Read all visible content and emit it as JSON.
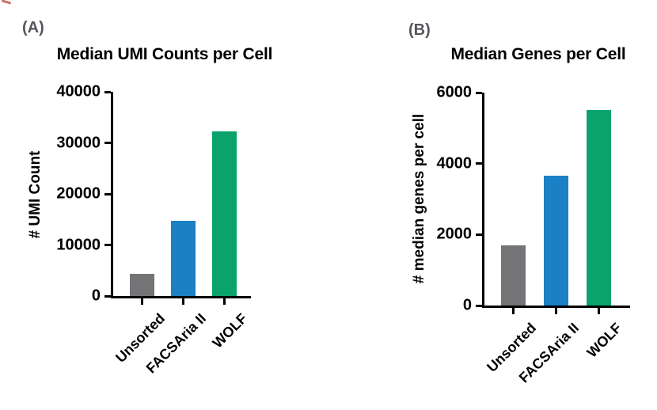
{
  "figure": {
    "background": "#ffffff",
    "panel_label_color": "#55565B",
    "axis_color": "#000000"
  },
  "chart_data": [
    {
      "type": "bar",
      "panel_label": "(A)",
      "title": "Median UMI Counts per Cell",
      "xlabel": "",
      "ylabel": "# UMI Count",
      "categories": [
        "Unsorted",
        "FACSAria II",
        "WOLF"
      ],
      "values": [
        4400,
        14800,
        32200
      ],
      "ylim": [
        0,
        40000
      ],
      "yticks": [
        0,
        10000,
        20000,
        30000,
        40000
      ],
      "bar_colors": [
        "#747476",
        "#1B80C4",
        "#09A36B"
      ],
      "grid": false,
      "legend": "none"
    },
    {
      "type": "bar",
      "panel_label": "(B)",
      "title": "Median Genes per Cell",
      "xlabel": "",
      "ylabel": "# median genes per cell",
      "categories": [
        "Unsorted",
        "FACSAria II",
        "WOLF"
      ],
      "values": [
        1700,
        3650,
        5500
      ],
      "ylim": [
        0,
        6000
      ],
      "yticks": [
        0,
        2000,
        4000,
        6000
      ],
      "bar_colors": [
        "#747476",
        "#1B80C4",
        "#09A36B"
      ],
      "grid": false,
      "legend": "none"
    }
  ]
}
